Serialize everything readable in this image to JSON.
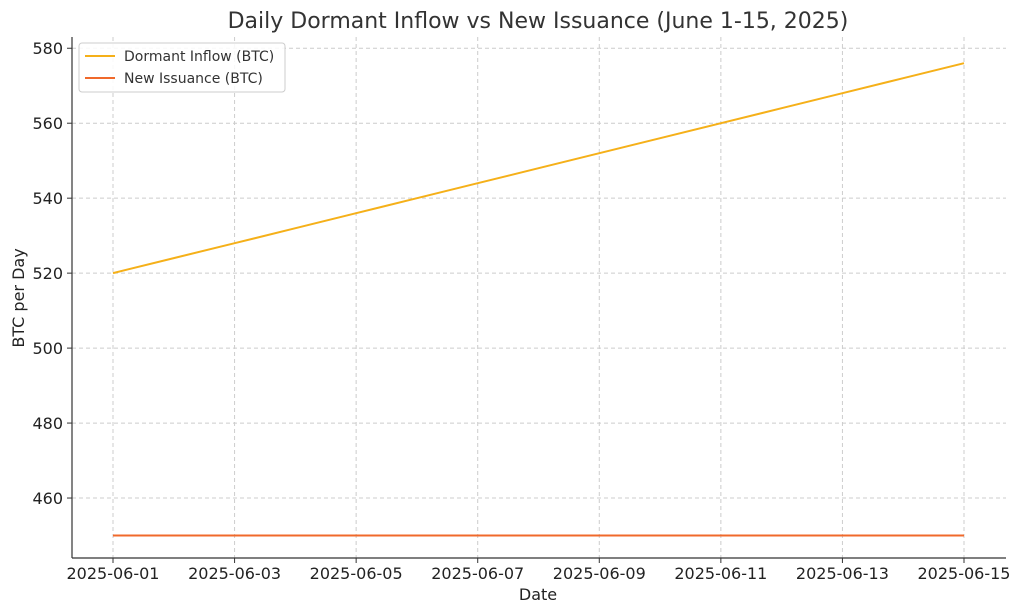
{
  "chart_data": {
    "type": "line",
    "title": "Daily Dormant Inflow vs New Issuance (June 1-15, 2025)",
    "xlabel": "Date",
    "ylabel": "BTC per Day",
    "x": [
      "2025-06-01",
      "2025-06-02",
      "2025-06-03",
      "2025-06-04",
      "2025-06-05",
      "2025-06-06",
      "2025-06-07",
      "2025-06-08",
      "2025-06-09",
      "2025-06-10",
      "2025-06-11",
      "2025-06-12",
      "2025-06-13",
      "2025-06-14",
      "2025-06-15"
    ],
    "x_tick_labels": [
      "2025-06-01",
      "2025-06-03",
      "2025-06-05",
      "2025-06-07",
      "2025-06-09",
      "2025-06-11",
      "2025-06-13",
      "2025-06-15"
    ],
    "y_ticks": [
      460,
      480,
      500,
      520,
      540,
      560,
      580
    ],
    "ylim": [
      444,
      583
    ],
    "grid": true,
    "legend_position": "top-left",
    "series": [
      {
        "name": "Dormant Inflow (BTC)",
        "color": "#f5b019",
        "values": [
          520,
          524,
          528,
          532,
          536,
          540,
          544,
          548,
          552,
          556,
          560,
          564,
          568,
          572,
          576
        ]
      },
      {
        "name": "New Issuance (BTC)",
        "color": "#f0692b",
        "values": [
          450,
          450,
          450,
          450,
          450,
          450,
          450,
          450,
          450,
          450,
          450,
          450,
          450,
          450,
          450
        ]
      }
    ]
  }
}
